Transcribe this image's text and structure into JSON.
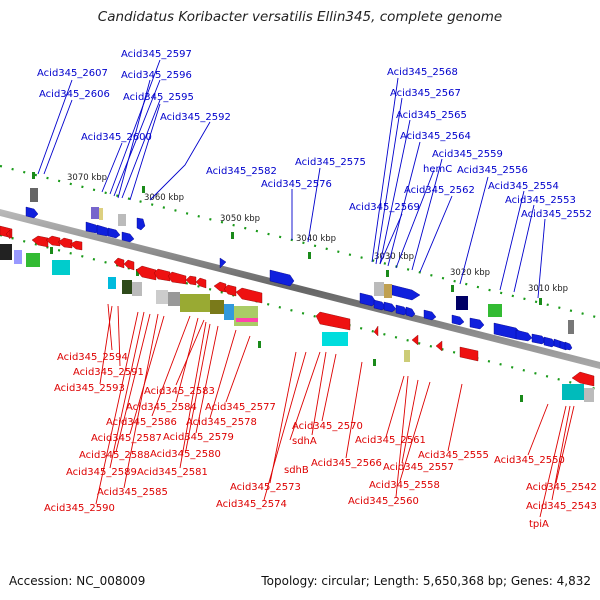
{
  "title": "Candidatus Koribacter versatilis Ellin345, complete genome",
  "footer": {
    "accession": "Accession: NC_008009",
    "topology": "Topology: circular; Length: 5,650,368 bp; Genes: 4,832"
  },
  "colors": {
    "forward_strand": "#0000cc",
    "reverse_strand": "#dd0000",
    "backbone": "#888888",
    "tick": "#228822"
  },
  "scale_labels": [
    "3070 kbp",
    "3060 kbp",
    "3050 kbp",
    "3040 kbp",
    "3030 kbp",
    "3020 kbp",
    "3010 kbp"
  ],
  "forward_labels": [
    "Acid345_2607",
    "Acid345_2606",
    "Acid345_2597",
    "Acid345_2596",
    "Acid345_2595",
    "Acid345_2600",
    "Acid345_2592",
    "Acid345_2582",
    "Acid345_2576",
    "Acid345_2575",
    "Acid345_2568",
    "Acid345_2567",
    "Acid345_2565",
    "Acid345_2564",
    "hemC",
    "Acid345_2559",
    "Acid345_2562",
    "Acid345_2556",
    "Acid345_2554",
    "Acid345_2553",
    "Acid345_2569",
    "Acid345_2552"
  ],
  "reverse_labels": [
    "Acid345_2594",
    "Acid345_2591",
    "Acid345_2593",
    "Acid345_2583",
    "Acid345_2584",
    "Acid345_2586",
    "Acid345_2577",
    "Acid345_2578",
    "Acid345_2587",
    "Acid345_2579",
    "Acid345_2588",
    "Acid345_2580",
    "Acid345_2589",
    "Acid345_2581",
    "Acid345_2585",
    "Acid345_2590",
    "Acid345_2570",
    "sdhA",
    "sdhB",
    "Acid345_2573",
    "Acid345_2574",
    "Acid345_2566",
    "Acid345_2561",
    "Acid345_2557",
    "Acid345_2558",
    "Acid345_2560",
    "Acid345_2555",
    "Acid345_2550",
    "Acid345_2542",
    "Acid345_2543",
    "tpiA"
  ]
}
